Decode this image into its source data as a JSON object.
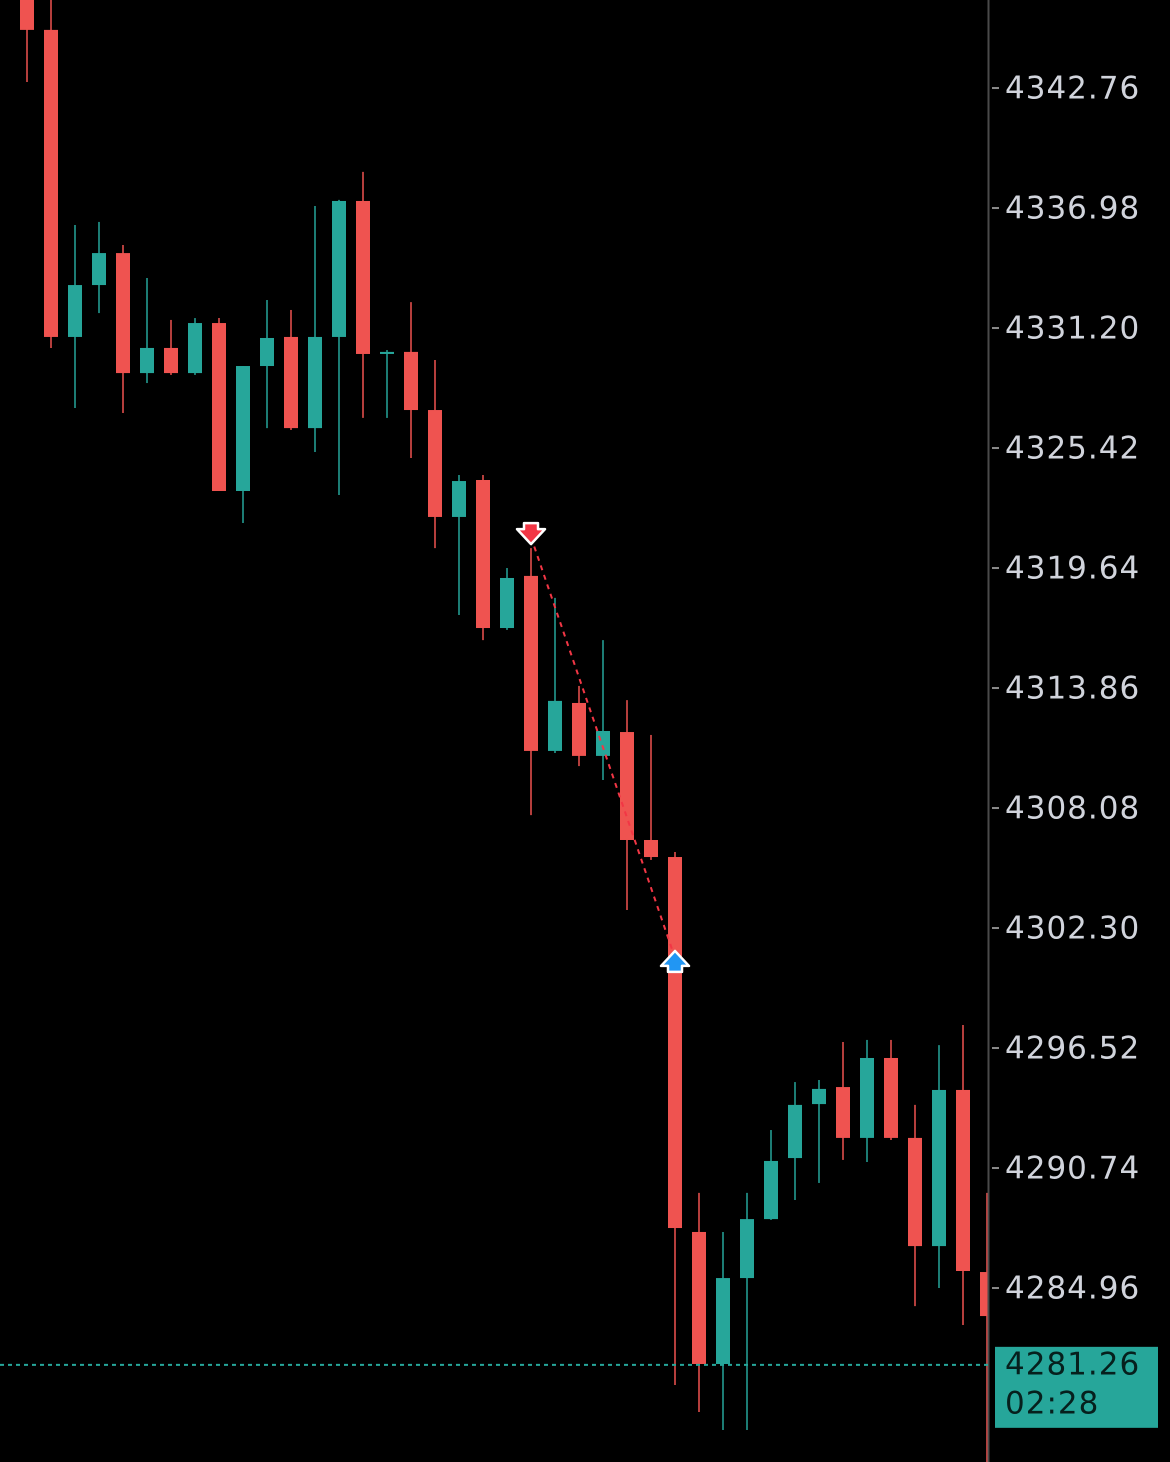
{
  "chart_data": {
    "type": "candlestick",
    "up_color": "#26a69a",
    "down_color": "#ef5350",
    "ylim": [
      4276.58,
      4347.0
    ],
    "yticks": [
      4342.76,
      4336.98,
      {
        "value": 4331.2,
        "label": "4331.20"
      },
      4325.42,
      4319.64,
      4313.86,
      4308.08,
      {
        "value": 4302.3,
        "label": "4302.30"
      },
      4296.52,
      4290.74,
      4284.96
    ],
    "open": [
      4347.0,
      4345.56,
      4330.77,
      4333.27,
      4334.81,
      4329.03,
      4330.24,
      4329.03,
      4331.44,
      4323.35,
      4329.37,
      4330.77,
      4326.38,
      4330.77,
      4337.32,
      4329.95,
      4330.05,
      4327.25,
      4322.1,
      4323.88,
      4316.75,
      4319.26,
      4310.83,
      4313.14,
      4310.59,
      4311.74,
      4306.54,
      4305.72,
      4287.66,
      4281.3,
      4285.44,
      4288.28,
      4291.22,
      4293.82,
      4294.64,
      4292.19,
      4296.04,
      4292.19,
      4286.98,
      4294.5,
      4285.73
    ],
    "high": [
      4347.0,
      4347.0,
      4336.16,
      4336.31,
      4335.2,
      4333.61,
      4331.59,
      4331.68,
      4331.68,
      4329.37,
      4332.55,
      4332.07,
      4337.08,
      4337.37,
      4338.72,
      4330.14,
      4332.45,
      4329.66,
      4324.12,
      4324.12,
      4319.64,
      4320.6,
      4318.2,
      4313.96,
      4316.17,
      4313.28,
      4311.6,
      4305.96,
      4289.54,
      4287.66,
      4289.54,
      4292.57,
      4294.88,
      4294.98,
      4296.81,
      4296.91,
      4296.91,
      4293.78,
      4296.66,
      4297.63,
      4289.54
    ],
    "low": [
      4343.05,
      4330.24,
      4327.35,
      4331.92,
      4327.11,
      4328.55,
      4328.94,
      4328.94,
      4323.35,
      4321.81,
      4326.38,
      4326.29,
      4325.23,
      4323.16,
      4326.87,
      4326.87,
      4324.94,
      4320.6,
      4317.38,
      4316.17,
      4316.66,
      4307.74,
      4310.73,
      4310.1,
      4309.43,
      4303.17,
      4305.58,
      4280.29,
      4278.99,
      4278.12,
      4278.12,
      4288.24,
      4289.2,
      4290.02,
      4291.13,
      4291.03,
      4292.09,
      4284.09,
      4284.96,
      4283.18,
      4276.58
    ],
    "close": [
      4345.56,
      4330.77,
      4333.27,
      4334.81,
      4329.03,
      4330.24,
      4329.03,
      4331.44,
      4323.35,
      4329.37,
      4330.72,
      4326.38,
      4330.77,
      4337.32,
      4329.95,
      4330.05,
      4327.25,
      4322.1,
      4323.83,
      4316.75,
      4319.16,
      4310.83,
      4313.24,
      4310.59,
      4311.79,
      4306.54,
      4305.72,
      4287.85,
      4281.3,
      4285.44,
      4288.28,
      4291.08,
      4293.78,
      4294.55,
      4292.19,
      4296.04,
      4292.19,
      4286.98,
      4294.5,
      4285.78,
      4283.61
    ],
    "markers": [
      {
        "x": 21,
        "y": 4321.13,
        "shape": "arrow-down",
        "color": "#f23645"
      },
      {
        "x": 27,
        "y": 4300.86,
        "shape": "arrow-up",
        "color": "#2196f3"
      }
    ],
    "last_price": 4281.26,
    "countdown": "02:28"
  }
}
